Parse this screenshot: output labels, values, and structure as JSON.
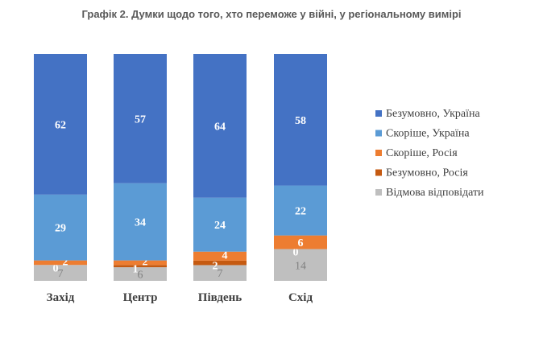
{
  "chart_data": {
    "type": "bar",
    "stacked": true,
    "title": "Графік 2. Думки щодо того, хто переможе у війні, у регіональному вимірі",
    "categories": [
      "Захід",
      "Центр",
      "Південь",
      "Схід"
    ],
    "series": [
      {
        "name": "Відмова відповідати",
        "color": "#BFBFBF",
        "label_color": "#7F7F7F",
        "values": [
          7,
          6,
          7,
          14
        ]
      },
      {
        "name": "Безумовно, Росія",
        "color": "#C55A11",
        "label_color": "#FFFFFF",
        "values": [
          0,
          1,
          2,
          0
        ]
      },
      {
        "name": "Скоріше, Росія",
        "color": "#ED7D31",
        "label_color": "#FFFFFF",
        "values": [
          2,
          2,
          4,
          6
        ]
      },
      {
        "name": "Скоріше, Україна",
        "color": "#5B9BD5",
        "label_color": "#FFFFFF",
        "values": [
          29,
          34,
          24,
          22
        ]
      },
      {
        "name": "Безумовно, Україна",
        "color": "#4472C4",
        "label_color": "#FFFFFF",
        "values": [
          62,
          57,
          64,
          58
        ]
      }
    ],
    "legend_order": [
      "Безумовно, Україна",
      "Скоріше, Україна",
      "Скоріше, Росія",
      "Безумовно, Росія",
      "Відмова відповідати"
    ],
    "legend_position": "right",
    "ylim": [
      0,
      100
    ]
  }
}
